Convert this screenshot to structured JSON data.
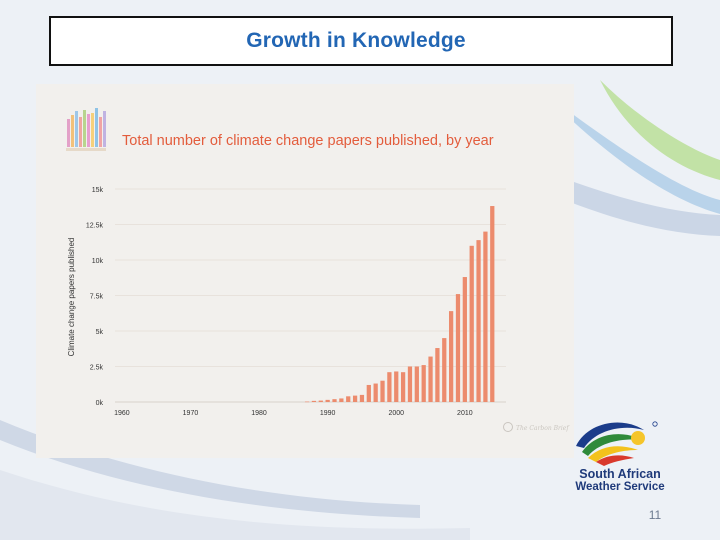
{
  "slide": {
    "title": "Growth in Knowledge",
    "page_number": "11"
  },
  "organization": {
    "name_line_1": "South African",
    "name_line_2": "Weather Service"
  },
  "chart_data": {
    "type": "bar",
    "title": "Total number of climate change papers published, by year",
    "xlabel": "",
    "ylabel": "Climate change papers published",
    "x_ticks": [
      "1960",
      "1970",
      "1980",
      "1990",
      "2000",
      "2010"
    ],
    "y_ticks": [
      "0k",
      "2.5k",
      "5k",
      "7.5k",
      "10k",
      "12.5k",
      "15k"
    ],
    "ylim": [
      0,
      15000
    ],
    "xlim": [
      1959,
      2016
    ],
    "grid": true,
    "bar_color": "#ec8b6d",
    "watermark": "The Carbon Brief",
    "x": [
      1987,
      1988,
      1989,
      1990,
      1991,
      1992,
      1993,
      1994,
      1995,
      1996,
      1997,
      1998,
      1999,
      2000,
      2001,
      2002,
      2003,
      2004,
      2005,
      2006,
      2007,
      2008,
      2009,
      2010,
      2011,
      2012,
      2013,
      2014
    ],
    "values": [
      30,
      80,
      100,
      150,
      200,
      250,
      400,
      450,
      500,
      1200,
      1300,
      1500,
      2100,
      2150,
      2100,
      2500,
      2500,
      2600,
      3200,
      3800,
      4500,
      6400,
      7600,
      8800,
      11000,
      11400,
      12000,
      13800
    ]
  }
}
